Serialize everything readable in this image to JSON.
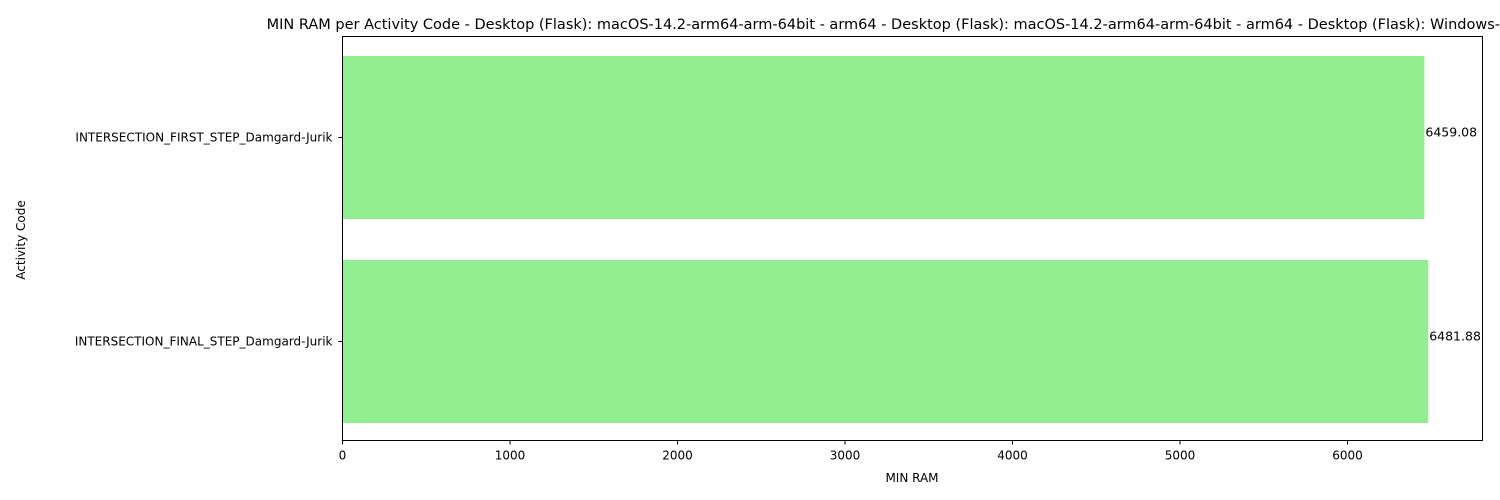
{
  "chart_data": {
    "type": "bar",
    "orientation": "horizontal",
    "title": "MIN RAM per Activity Code - Desktop (Flask): macOS-14.2-arm64-arm-64bit - arm64 - Desktop (Flask): macOS-14.2-arm64-arm-64bit - arm64 - Desktop (Flask): Windows-",
    "xlabel": "MIN RAM",
    "ylabel": "Activity Code",
    "categories": [
      "INTERSECTION_FIRST_STEP_Damgard-Jurik",
      "INTERSECTION_FINAL_STEP_Damgard-Jurik"
    ],
    "values": [
      6459.08,
      6481.88
    ],
    "value_labels": [
      "6459.08",
      "6481.88"
    ],
    "xlim": [
      0,
      6805.97
    ],
    "xticks": [
      0,
      1000,
      2000,
      3000,
      4000,
      5000,
      6000
    ],
    "bar_color": "#90ee90",
    "grid": false,
    "legend": "none"
  }
}
